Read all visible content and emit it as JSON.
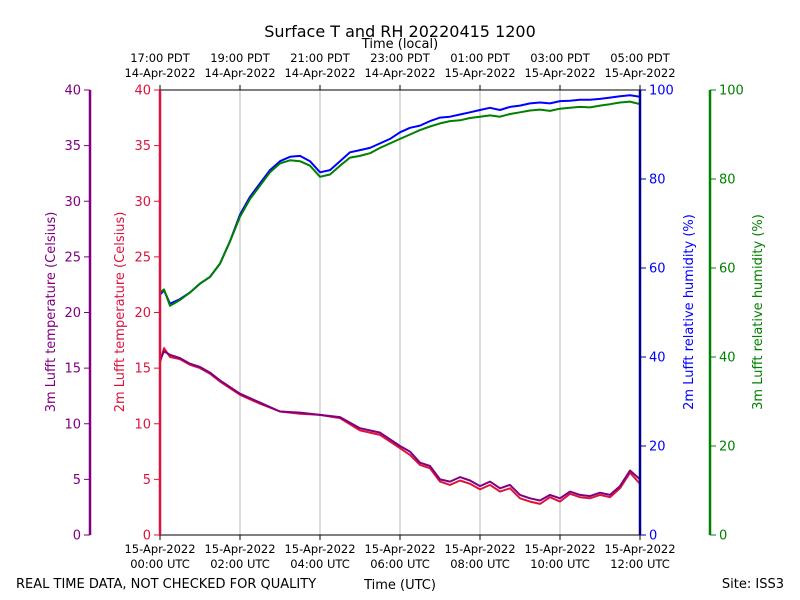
{
  "chart_data": {
    "type": "line",
    "title": "Surface T and RH 20220415 1200",
    "top_axis_label": "Time (local)",
    "bottom_axis_label": "Time (UTC)",
    "footer_left": "REAL TIME DATA, NOT CHECKED FOR QUALITY",
    "footer_right": "Site: ISS3",
    "x_range_hours": [
      0,
      12
    ],
    "bottom_ticks": [
      {
        "hour": 0,
        "line1": "15-Apr-2022",
        "line2": "00:00 UTC"
      },
      {
        "hour": 2,
        "line1": "15-Apr-2022",
        "line2": "02:00 UTC"
      },
      {
        "hour": 4,
        "line1": "15-Apr-2022",
        "line2": "04:00 UTC"
      },
      {
        "hour": 6,
        "line1": "15-Apr-2022",
        "line2": "06:00 UTC"
      },
      {
        "hour": 8,
        "line1": "15-Apr-2022",
        "line2": "08:00 UTC"
      },
      {
        "hour": 10,
        "line1": "15-Apr-2022",
        "line2": "10:00 UTC"
      },
      {
        "hour": 12,
        "line1": "15-Apr-2022",
        "line2": "12:00 UTC"
      }
    ],
    "top_ticks": [
      {
        "hour": 0,
        "line1": "17:00 PDT",
        "line2": "14-Apr-2022"
      },
      {
        "hour": 2,
        "line1": "19:00 PDT",
        "line2": "14-Apr-2022"
      },
      {
        "hour": 4,
        "line1": "21:00 PDT",
        "line2": "14-Apr-2022"
      },
      {
        "hour": 6,
        "line1": "23:00 PDT",
        "line2": "14-Apr-2022"
      },
      {
        "hour": 8,
        "line1": "01:00 PDT",
        "line2": "15-Apr-2022"
      },
      {
        "hour": 10,
        "line1": "03:00 PDT",
        "line2": "15-Apr-2022"
      },
      {
        "hour": 12,
        "line1": "05:00 PDT",
        "line2": "15-Apr-2022"
      }
    ],
    "axes": {
      "temp3m": {
        "label": "3m Lufft temperature (Celsius)",
        "ylim": [
          0,
          40
        ],
        "ticks": [
          0,
          5,
          10,
          15,
          20,
          25,
          30,
          35,
          40
        ],
        "color": "#800080"
      },
      "temp2m": {
        "label": "2m Lufft temperature (Celsius)",
        "ylim": [
          0,
          40
        ],
        "ticks": [
          0,
          5,
          10,
          15,
          20,
          25,
          30,
          35,
          40
        ],
        "color": "#dc143c"
      },
      "rh2m": {
        "label": "2m Lufft relative humidity (%)",
        "ylim": [
          0,
          100
        ],
        "ticks": [
          0,
          20,
          40,
          60,
          80,
          100
        ],
        "color": "#0000ff",
        "spine_color": "#00008b"
      },
      "rh3m": {
        "label": "3m Lufft relative humidity (%)",
        "ylim": [
          0,
          100
        ],
        "ticks": [
          0,
          20,
          40,
          60,
          80,
          100
        ],
        "color": "#008000"
      }
    },
    "series": [
      {
        "name": "2m temperature",
        "axis": "temp2m",
        "color": "#dc143c",
        "x": [
          0,
          0.1,
          0.25,
          0.5,
          0.75,
          1.0,
          1.25,
          1.5,
          2.0,
          2.5,
          3.0,
          3.5,
          4.0,
          4.5,
          5.0,
          5.5,
          6.0,
          6.25,
          6.5,
          6.75,
          7.0,
          7.25,
          7.5,
          7.75,
          8.0,
          8.25,
          8.5,
          8.75,
          9.0,
          9.25,
          9.5,
          9.75,
          10.0,
          10.25,
          10.5,
          10.75,
          11.0,
          11.25,
          11.5,
          11.75,
          12.0
        ],
        "y": [
          15.5,
          16.8,
          16.0,
          15.8,
          15.3,
          15.0,
          14.5,
          13.8,
          12.6,
          11.8,
          11.1,
          10.9,
          10.8,
          10.5,
          9.4,
          9.0,
          7.8,
          7.2,
          6.3,
          6.0,
          4.8,
          4.5,
          4.9,
          4.6,
          4.1,
          4.5,
          3.9,
          4.2,
          3.3,
          3.0,
          2.8,
          3.4,
          3.0,
          3.7,
          3.4,
          3.3,
          3.6,
          3.4,
          4.2,
          5.6,
          4.6
        ]
      },
      {
        "name": "3m temperature",
        "axis": "temp3m",
        "color": "#800080",
        "x": [
          0,
          0.1,
          0.25,
          0.5,
          0.75,
          1.0,
          1.25,
          1.5,
          2.0,
          2.5,
          3.0,
          3.5,
          4.0,
          4.5,
          5.0,
          5.5,
          6.0,
          6.25,
          6.5,
          6.75,
          7.0,
          7.25,
          7.5,
          7.75,
          8.0,
          8.25,
          8.5,
          8.75,
          9.0,
          9.25,
          9.5,
          9.75,
          10.0,
          10.25,
          10.5,
          10.75,
          11.0,
          11.25,
          11.5,
          11.75,
          12.0
        ],
        "y": [
          15.7,
          16.5,
          16.2,
          15.9,
          15.4,
          15.1,
          14.6,
          13.9,
          12.7,
          11.9,
          11.1,
          11.0,
          10.8,
          10.6,
          9.6,
          9.2,
          8.0,
          7.5,
          6.5,
          6.2,
          5.0,
          4.8,
          5.2,
          4.9,
          4.4,
          4.8,
          4.2,
          4.5,
          3.6,
          3.3,
          3.1,
          3.6,
          3.3,
          3.9,
          3.6,
          3.5,
          3.8,
          3.6,
          4.4,
          5.8,
          5.0
        ]
      },
      {
        "name": "2m relative humidity",
        "axis": "rh2m",
        "color": "#0000ff",
        "x": [
          0,
          0.1,
          0.25,
          0.5,
          0.75,
          1.0,
          1.25,
          1.5,
          1.75,
          2.0,
          2.25,
          2.5,
          2.75,
          3.0,
          3.25,
          3.5,
          3.75,
          4.0,
          4.25,
          4.5,
          4.75,
          5.0,
          5.25,
          5.5,
          5.75,
          6.0,
          6.25,
          6.5,
          6.75,
          7.0,
          7.25,
          7.5,
          7.75,
          8.0,
          8.25,
          8.5,
          8.75,
          9.0,
          9.25,
          9.5,
          9.75,
          10.0,
          10.25,
          10.5,
          10.75,
          11.0,
          11.25,
          11.5,
          11.75,
          12.0
        ],
        "y": [
          54.0,
          55.0,
          52.0,
          53.0,
          54.5,
          56.5,
          58.0,
          61.0,
          66.0,
          72.0,
          76.0,
          79.0,
          82.0,
          84.0,
          85.0,
          85.2,
          84.0,
          81.5,
          82.0,
          84.0,
          86.0,
          86.5,
          87.0,
          88.0,
          89.0,
          90.5,
          91.5,
          92.0,
          93.0,
          93.8,
          94.0,
          94.5,
          95.0,
          95.5,
          96.0,
          95.5,
          96.2,
          96.5,
          97.0,
          97.2,
          97.0,
          97.5,
          97.6,
          97.8,
          97.8,
          98.0,
          98.3,
          98.6,
          98.8,
          98.5
        ]
      },
      {
        "name": "3m relative humidity",
        "axis": "rh3m",
        "color": "#008000",
        "x": [
          0,
          0.1,
          0.25,
          0.5,
          0.75,
          1.0,
          1.25,
          1.5,
          1.75,
          2.0,
          2.25,
          2.5,
          2.75,
          3.0,
          3.25,
          3.5,
          3.75,
          4.0,
          4.25,
          4.5,
          4.75,
          5.0,
          5.25,
          5.5,
          5.75,
          6.0,
          6.25,
          6.5,
          6.75,
          7.0,
          7.25,
          7.5,
          7.75,
          8.0,
          8.25,
          8.5,
          8.75,
          9.0,
          9.25,
          9.5,
          9.75,
          10.0,
          10.25,
          10.5,
          10.75,
          11.0,
          11.25,
          11.5,
          11.75,
          12.0
        ],
        "y": [
          54.5,
          55.2,
          51.5,
          52.8,
          54.5,
          56.5,
          58.0,
          61.0,
          66.0,
          71.5,
          75.5,
          78.5,
          81.5,
          83.5,
          84.2,
          84.0,
          83.0,
          80.5,
          81.0,
          83.0,
          84.8,
          85.2,
          85.8,
          87.0,
          88.0,
          89.0,
          90.0,
          91.0,
          91.8,
          92.5,
          93.0,
          93.2,
          93.7,
          94.0,
          94.3,
          94.0,
          94.6,
          95.0,
          95.4,
          95.6,
          95.3,
          95.8,
          96.0,
          96.2,
          96.1,
          96.5,
          96.8,
          97.2,
          97.4,
          96.8
        ]
      }
    ]
  }
}
